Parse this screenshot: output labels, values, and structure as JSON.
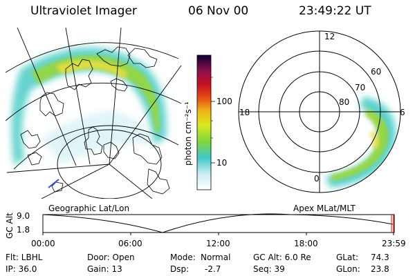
{
  "header": {
    "title": "Ultraviolet Imager",
    "date": "06 Nov 00",
    "time": "23:49:22 UT"
  },
  "colorbar": {
    "unit_label": "photon cm⁻²s⁻¹",
    "ticks": [
      "100",
      "10"
    ]
  },
  "geo_panel": {
    "caption": "Geographic Lat/Lon"
  },
  "polar_panel": {
    "caption": "Apex MLat/MLT",
    "mlt_labels": [
      "12",
      "18",
      "6",
      "0"
    ],
    "lat_labels": [
      "60",
      "70",
      "80"
    ]
  },
  "altitude_plot": {
    "ylabel": "GC Alt",
    "yticks": [
      "9.0",
      "1.8"
    ],
    "xticks": [
      "00:00",
      "06:00",
      "12:00",
      "18:00",
      "23:59"
    ]
  },
  "footer": {
    "col1": [
      "Flt: LBHL",
      "IP: 36.0"
    ],
    "col2": [
      "Door: Open",
      "Gain: 13"
    ],
    "col3a": [
      "Mode:",
      "Dsp:"
    ],
    "col3b": [
      "Normal",
      "-2.7"
    ],
    "col4": [
      "GC Alt: 6.0 Re",
      "Seq: 39"
    ],
    "col5a": [
      "GLat:",
      "GLon:"
    ],
    "col5b": [
      "74.3",
      "23.8"
    ]
  },
  "colors": {
    "aurora_low": "#33c6c0",
    "aurora_mid": "#8fd630",
    "aurora_high": "#f0e040",
    "marker": "#ff0000"
  }
}
